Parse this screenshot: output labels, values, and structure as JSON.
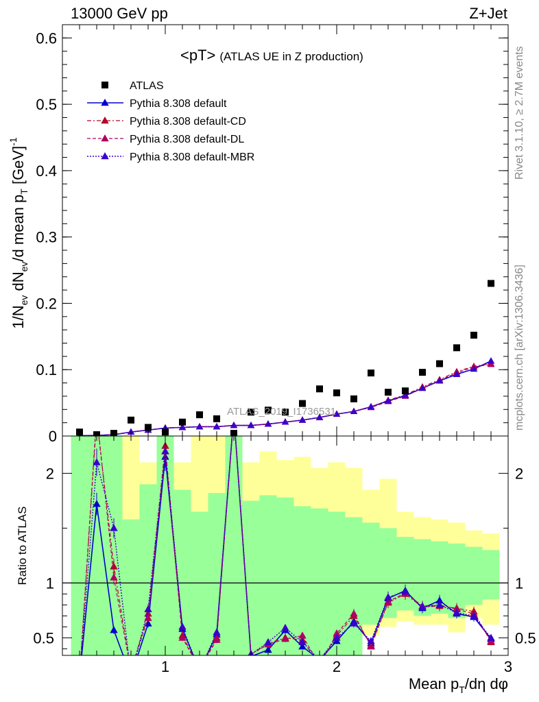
{
  "header": {
    "left": "13000 GeV pp",
    "right": "Z+Jet",
    "title_main": "<pT>",
    "title_sub": "(ATLAS UE in Z production)"
  },
  "side": {
    "rivet": "Rivet 3.1.10, ≥ 2.7M events",
    "mcplots": "mcplots.cern.ch [arXiv:1306.3436]"
  },
  "watermark": "ATLAS_2019_I1736531",
  "axes": {
    "top_ylabel": "1/N_ev dN_ev/d mean p_T [GeV]^-1",
    "bottom_ylabel": "Ratio to ATLAS",
    "xlabel": "Mean p_T/dη dφ"
  },
  "chart_data": {
    "type": "scatter",
    "x": [
      0.5,
      0.6,
      0.7,
      0.8,
      0.9,
      1.0,
      1.1,
      1.2,
      1.3,
      1.4,
      1.5,
      1.6,
      1.7,
      1.8,
      1.9,
      2.0,
      2.1,
      2.2,
      2.3,
      2.4,
      2.5,
      2.6,
      2.7,
      2.8,
      2.9
    ],
    "xlim": [
      0.4,
      3.0
    ],
    "xticks": [
      "1",
      "2",
      "3"
    ],
    "top": {
      "ylim": [
        0,
        0.62
      ],
      "yticks": [
        "0",
        "0.1",
        "0.2",
        "0.3",
        "0.4",
        "0.5",
        "0.6"
      ],
      "legend": [
        "ATLAS",
        "Pythia 8.308 default",
        "Pythia 8.308 default-CD",
        "Pythia 8.308 default-DL",
        "Pythia 8.308 default-MBR"
      ],
      "series": [
        {
          "name": "ATLAS",
          "color": "#000000",
          "values": [
            0.006,
            0.002,
            0.004,
            0.024,
            0.013,
            0.006,
            0.021,
            0.032,
            0.026,
            0.004,
            0.036,
            0.039,
            0.036,
            0.049,
            0.071,
            0.065,
            0.056,
            0.095,
            0.066,
            0.068,
            0.096,
            0.109,
            0.133,
            0.152,
            0.23
          ]
        },
        {
          "name": "Pythia 8.308 default",
          "color": "#0000cc",
          "values": [
            0.0005,
            0.001,
            0.002,
            0.006,
            0.009,
            0.012,
            0.013,
            0.014,
            0.014,
            0.016,
            0.016,
            0.018,
            0.021,
            0.024,
            0.028,
            0.033,
            0.037,
            0.044,
            0.053,
            0.061,
            0.072,
            0.083,
            0.093,
            0.101,
            0.113
          ]
        },
        {
          "name": "Pythia 8.308 default-CD",
          "color": "#b5002a",
          "values": [
            0.0005,
            0.001,
            0.002,
            0.006,
            0.009,
            0.012,
            0.013,
            0.014,
            0.014,
            0.016,
            0.016,
            0.018,
            0.021,
            0.024,
            0.028,
            0.033,
            0.037,
            0.044,
            0.054,
            0.062,
            0.074,
            0.085,
            0.097,
            0.105,
            0.109
          ]
        },
        {
          "name": "Pythia 8.308 default-DL",
          "color": "#b00060",
          "values": [
            0.0005,
            0.001,
            0.002,
            0.006,
            0.009,
            0.012,
            0.013,
            0.014,
            0.014,
            0.016,
            0.016,
            0.018,
            0.021,
            0.024,
            0.028,
            0.033,
            0.037,
            0.043,
            0.052,
            0.06,
            0.072,
            0.084,
            0.095,
            0.104,
            0.108
          ]
        },
        {
          "name": "Pythia 8.308 default-MBR",
          "color": "#3a00cc",
          "values": [
            0.0005,
            0.001,
            0.002,
            0.006,
            0.009,
            0.012,
            0.013,
            0.014,
            0.014,
            0.016,
            0.016,
            0.018,
            0.021,
            0.024,
            0.028,
            0.033,
            0.037,
            0.044,
            0.053,
            0.061,
            0.072,
            0.083,
            0.093,
            0.101,
            0.113
          ]
        }
      ]
    },
    "ratio": {
      "ylim": [
        0.34,
        2.34
      ],
      "yticks": [
        "0.5",
        "1",
        "2"
      ],
      "band_yellow_lo": [
        0.3,
        0.3,
        0.3,
        0.3,
        0.3,
        0.3,
        0.3,
        0.3,
        0.3,
        0.3,
        0.3,
        0.3,
        0.3,
        0.3,
        0.3,
        0.3,
        0.3,
        0.52,
        0.6,
        0.65,
        0.62,
        0.62,
        0.55,
        0.68,
        0.62
      ],
      "band_yellow_hi": [
        2.4,
        2.4,
        2.4,
        2.4,
        2.1,
        2.4,
        2.1,
        2.4,
        2.4,
        2.4,
        2.1,
        2.2,
        2.12,
        2.15,
        2.05,
        2.1,
        2.05,
        1.85,
        1.95,
        1.65,
        1.6,
        1.58,
        1.55,
        1.48,
        1.45
      ],
      "band_green_lo": [
        0.3,
        0.3,
        0.3,
        0.3,
        0.3,
        0.3,
        0.3,
        0.3,
        0.3,
        0.3,
        0.3,
        0.3,
        0.3,
        0.3,
        0.3,
        0.3,
        0.3,
        0.62,
        0.68,
        0.75,
        0.7,
        0.72,
        0.68,
        0.8,
        0.85
      ],
      "band_green_hi": [
        2.4,
        2.4,
        2.4,
        1.58,
        1.9,
        2.4,
        1.85,
        1.65,
        1.82,
        2.4,
        1.75,
        1.8,
        1.78,
        1.7,
        1.68,
        1.65,
        1.6,
        1.55,
        1.5,
        1.42,
        1.4,
        1.38,
        1.36,
        1.33,
        1.3
      ],
      "series": [
        {
          "name": "Pythia 8.308 default",
          "values": [
            0.08,
            1.72,
            0.57,
            0.15,
            0.63,
            2.15,
            0.58,
            0.2,
            0.53,
            2.7,
            0.33,
            0.39,
            0.57,
            0.42,
            0.3,
            0.47,
            0.65,
            0.45,
            0.86,
            0.93,
            0.77,
            0.84,
            0.72,
            0.69,
            0.49
          ]
        },
        {
          "name": "Pythia 8.308 default-CD",
          "values": [
            0.08,
            2.5,
            1.15,
            0.2,
            0.72,
            2.25,
            0.52,
            0.22,
            0.5,
            2.7,
            0.35,
            0.45,
            0.5,
            0.48,
            0.25,
            0.52,
            0.7,
            0.43,
            0.82,
            0.9,
            0.78,
            0.79,
            0.77,
            0.74,
            0.46
          ]
        },
        {
          "name": "Pythia 8.308 default-DL",
          "values": [
            0.08,
            2.6,
            1.05,
            0.2,
            0.68,
            2.2,
            0.5,
            0.22,
            0.48,
            2.7,
            0.35,
            0.44,
            0.49,
            0.52,
            0.25,
            0.54,
            0.72,
            0.42,
            0.83,
            0.91,
            0.79,
            0.8,
            0.76,
            0.72,
            0.47
          ]
        },
        {
          "name": "Pythia 8.308 default-MBR",
          "values": [
            0.08,
            2.1,
            1.5,
            0.15,
            0.76,
            2.2,
            0.6,
            0.2,
            0.55,
            2.7,
            0.35,
            0.46,
            0.59,
            0.46,
            0.3,
            0.5,
            0.63,
            0.47,
            0.87,
            0.92,
            0.78,
            0.8,
            0.73,
            0.7,
            0.5
          ]
        }
      ]
    }
  }
}
